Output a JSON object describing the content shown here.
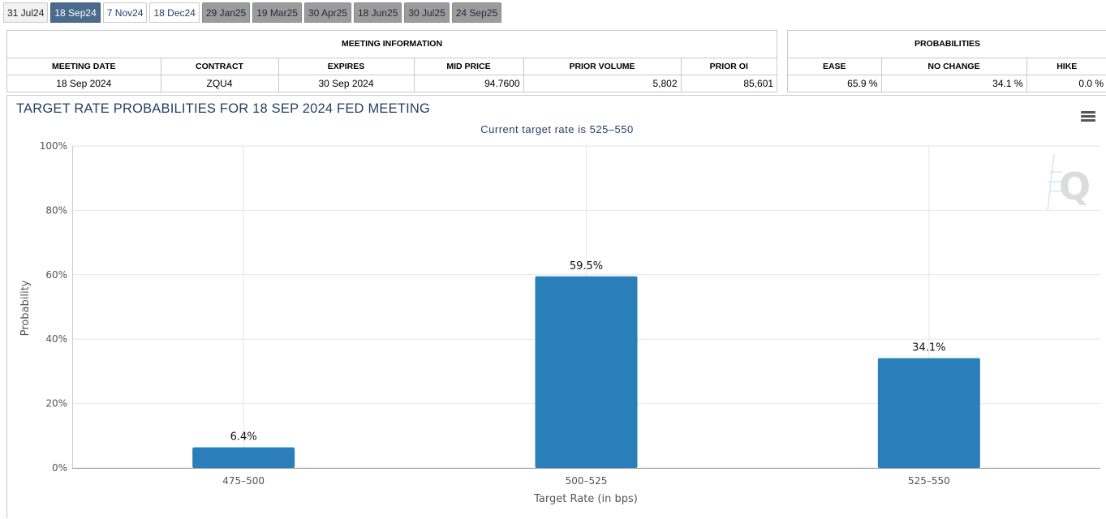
{
  "tabs": [
    {
      "label": "31 Jul24",
      "state": "past"
    },
    {
      "label": "18 Sep24",
      "state": "active"
    },
    {
      "label": "7 Nov24",
      "state": "normal"
    },
    {
      "label": "18 Dec24",
      "state": "normal"
    },
    {
      "label": "29 Jan25",
      "state": "future"
    },
    {
      "label": "19 Mar25",
      "state": "future"
    },
    {
      "label": "30 Apr25",
      "state": "future"
    },
    {
      "label": "18 Jun25",
      "state": "future"
    },
    {
      "label": "30 Jul25",
      "state": "future"
    },
    {
      "label": "24 Sep25",
      "state": "future"
    }
  ],
  "meeting_info": {
    "title": "MEETING INFORMATION",
    "headers": {
      "meeting_date": "MEETING DATE",
      "contract": "CONTRACT",
      "expires": "EXPIRES",
      "mid_price": "MID PRICE",
      "prior_volume": "PRIOR VOLUME",
      "prior_oi": "PRIOR OI"
    },
    "values": {
      "meeting_date": "18 Sep 2024",
      "contract": "ZQU4",
      "expires": "30 Sep 2024",
      "mid_price": "94.7600",
      "prior_volume": "5,802",
      "prior_oi": "85,601"
    }
  },
  "probabilities": {
    "title": "PROBABILITIES",
    "headers": {
      "ease": "EASE",
      "no_change": "NO CHANGE",
      "hike": "HIKE"
    },
    "values": {
      "ease": "65.9 %",
      "no_change": "34.1 %",
      "hike": "0.0 %"
    }
  },
  "chart_data": {
    "type": "bar",
    "title": "TARGET RATE PROBABILITIES FOR 18 SEP 2024 FED MEETING",
    "subtitle": "Current target rate is 525–550",
    "xlabel": "Target Rate (in bps)",
    "ylabel": "Probability",
    "categories": [
      "475–500",
      "500–525",
      "525–550"
    ],
    "values": [
      6.4,
      59.5,
      34.1
    ],
    "data_labels": [
      "6.4%",
      "59.5%",
      "34.1%"
    ],
    "ylim": [
      0,
      100
    ],
    "yticks": [
      0,
      20,
      40,
      60,
      80,
      100
    ],
    "ytick_labels": [
      "0%",
      "20%",
      "40%",
      "60%",
      "80%",
      "100%"
    ],
    "bar_color": "#2a7fba",
    "grid": true,
    "legend": "none"
  },
  "icons": {
    "menu": "hamburger-menu-icon",
    "watermark": "q-logo-icon"
  }
}
